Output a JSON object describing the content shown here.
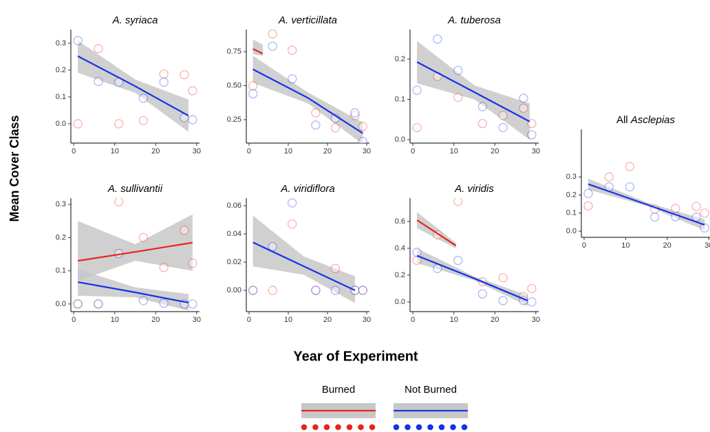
{
  "ylabel": "Mean Cover Class",
  "xlabel": "Year of Experiment",
  "legend": [
    {
      "name": "Burned",
      "color": "#e8231b"
    },
    {
      "name": "Not Burned",
      "color": "#1432e8"
    }
  ],
  "chart_data": [
    {
      "type": "scatter",
      "title": [
        {
          "text": "A. syriaca",
          "italic": true
        }
      ],
      "xlim": [
        -0.7,
        30.7
      ],
      "xticks": [
        0,
        10,
        20,
        30
      ],
      "ylim": [
        -0.072,
        0.351
      ],
      "yticks": [
        {
          "value": 0,
          "label": "0.0"
        },
        0.1,
        0.2,
        0.3
      ],
      "series": [
        {
          "group": 0,
          "x": [
            1,
            6,
            11,
            17,
            22,
            27,
            29
          ],
          "values": [
            0.0,
            0.28,
            0.0,
            0.012,
            0.185,
            0.183,
            0.123
          ]
        },
        {
          "group": 1,
          "x": [
            1,
            6,
            11,
            17,
            22,
            27,
            29
          ],
          "values": [
            0.31,
            0.158,
            0.155,
            0.095,
            0.155,
            0.023,
            0.015
          ],
          "fit": {
            "x": [
              1,
              15,
              28
            ],
            "values": [
              0.252,
              0.14,
              0.03
            ],
            "lower": [
              0.19,
              0.115,
              -0.03
            ],
            "upper": [
              0.31,
              0.165,
              0.09
            ]
          }
        }
      ]
    },
    {
      "type": "scatter",
      "title": [
        {
          "text": "A. verticillata",
          "italic": true
        }
      ],
      "xlim": [
        -0.7,
        30.7
      ],
      "xticks": [
        0,
        10,
        20,
        30
      ],
      "ylim": [
        0.078,
        0.912
      ],
      "yticks": [
        0.25,
        {
          "value": 0.5,
          "label": "0.50"
        },
        0.75
      ],
      "series": [
        {
          "group": 0,
          "x": [
            1,
            6,
            11,
            17,
            22,
            27,
            29
          ],
          "values": [
            0.5,
            0.88,
            0.76,
            0.3,
            0.19,
            0.28,
            0.2
          ],
          "fit": {
            "x": [
              1,
              3.5
            ],
            "values": [
              0.77,
              0.735
            ],
            "lower": [
              0.73,
              0.72
            ],
            "upper": [
              0.84,
              0.8
            ]
          }
        },
        {
          "group": 1,
          "x": [
            1,
            6,
            11,
            17,
            22,
            27,
            29
          ],
          "values": [
            0.44,
            0.79,
            0.55,
            0.21,
            0.26,
            0.3,
            0.09
          ],
          "fit": {
            "x": [
              1,
              15,
              29
            ],
            "values": [
              0.62,
              0.41,
              0.15
            ],
            "lower": [
              0.52,
              0.37,
              0.07
            ],
            "upper": [
              0.72,
              0.45,
              0.23
            ]
          }
        }
      ]
    },
    {
      "type": "scatter",
      "title": [
        {
          "text": "A. tuberosa",
          "italic": true
        }
      ],
      "xlim": [
        -0.7,
        30.7
      ],
      "xticks": [
        0,
        10,
        20,
        30
      ],
      "ylim": [
        -0.0085,
        0.2735
      ],
      "yticks": [
        {
          "value": 0,
          "label": "0.0"
        },
        0.1,
        0.2
      ],
      "series": [
        {
          "group": 0,
          "x": [
            1,
            6,
            11,
            17,
            22,
            27,
            29
          ],
          "values": [
            0.03,
            0.157,
            0.105,
            0.04,
            0.06,
            0.078,
            0.04
          ]
        },
        {
          "group": 1,
          "x": [
            1,
            6,
            11,
            17,
            22,
            27,
            29
          ],
          "values": [
            0.123,
            0.25,
            0.172,
            0.082,
            0.03,
            0.103,
            0.012
          ],
          "fit": {
            "x": [
              1,
              15,
              28.5
            ],
            "values": [
              0.193,
              0.118,
              0.045
            ],
            "lower": [
              0.14,
              0.1,
              0.0
            ],
            "upper": [
              0.245,
              0.135,
              0.09
            ]
          }
        }
      ]
    },
    {
      "type": "scatter",
      "title": [
        {
          "text": "A. sullivantii",
          "italic": true
        }
      ],
      "xlim": [
        -0.7,
        30.7
      ],
      "xticks": [
        0,
        10,
        20,
        30
      ],
      "ylim": [
        -0.023,
        0.319
      ],
      "yticks": [
        {
          "value": 0,
          "label": "0.0"
        },
        0.1,
        0.2,
        0.3
      ],
      "series": [
        {
          "group": 0,
          "x": [
            1,
            6,
            11,
            17,
            22,
            27,
            29
          ],
          "values": [
            0.0,
            0.0,
            0.308,
            0.2,
            0.11,
            0.222,
            0.123
          ],
          "fit": {
            "x": [
              1,
              15,
              29
            ],
            "values": [
              0.13,
              0.157,
              0.185
            ],
            "lower": [
              0.07,
              0.13,
              0.1
            ],
            "upper": [
              0.25,
              0.18,
              0.27
            ]
          }
        },
        {
          "group": 1,
          "x": [
            1,
            6,
            11,
            17,
            22,
            27,
            29
          ],
          "values": [
            0.0,
            0.0,
            0.152,
            0.01,
            0.002,
            0.0,
            0.0
          ],
          "fit": {
            "x": [
              1,
              15,
              28
            ],
            "values": [
              0.066,
              0.035,
              0.004
            ],
            "lower": [
              0.025,
              0.02,
              -0.02
            ],
            "upper": [
              0.105,
              0.05,
              0.03
            ]
          }
        }
      ]
    },
    {
      "type": "scatter",
      "title": [
        {
          "text": "A. viridiflora",
          "italic": true
        }
      ],
      "xlim": [
        -0.7,
        30.7
      ],
      "xticks": [
        0,
        10,
        20,
        30
      ],
      "ylim": [
        -0.0151,
        0.0654
      ],
      "yticks": [
        {
          "value": 0,
          "label": "0.00"
        },
        0.02,
        0.04,
        0.06
      ],
      "series": [
        {
          "group": 0,
          "x": [
            1,
            6,
            11,
            17,
            22,
            27,
            29
          ],
          "values": [
            0.0,
            0.0,
            0.047,
            0.0,
            0.0155,
            0.0,
            0.0
          ]
        },
        {
          "group": 1,
          "x": [
            1,
            6,
            11,
            17,
            22,
            27,
            29
          ],
          "values": [
            0.0,
            0.031,
            0.062,
            0.0,
            0.0,
            0.0,
            0.0
          ],
          "fit": {
            "x": [
              1,
              14,
              27
            ],
            "values": [
              0.034,
              0.017,
              0.0
            ],
            "lower": [
              0.017,
              0.011,
              -0.009
            ],
            "upper": [
              0.053,
              0.024,
              0.01
            ]
          }
        }
      ]
    },
    {
      "type": "scatter",
      "title": [
        {
          "text": "A. viridis",
          "italic": true
        }
      ],
      "xlim": [
        -0.7,
        30.7
      ],
      "xticks": [
        0,
        10,
        20,
        30
      ],
      "ylim": [
        -0.072,
        0.774
      ],
      "yticks": [
        {
          "value": 0,
          "label": "0.0"
        },
        0.2,
        0.4,
        0.6
      ],
      "series": [
        {
          "group": 0,
          "x": [
            1,
            6,
            11,
            17,
            22,
            27,
            29
          ],
          "values": [
            0.31,
            0.5,
            0.75,
            0.15,
            0.18,
            0.04,
            0.1
          ],
          "fit": {
            "x": [
              1,
              10.5
            ],
            "values": [
              0.61,
              0.42
            ],
            "lower": [
              0.55,
              0.4
            ],
            "upper": [
              0.67,
              0.44
            ]
          }
        },
        {
          "group": 1,
          "x": [
            1,
            6,
            11,
            17,
            22,
            27,
            29
          ],
          "values": [
            0.37,
            0.25,
            0.31,
            0.06,
            0.01,
            0.01,
            0.0
          ],
          "fit": {
            "x": [
              1,
              15,
              28
            ],
            "values": [
              0.345,
              0.175,
              0.01
            ],
            "lower": [
              0.29,
              0.16,
              -0.03
            ],
            "upper": [
              0.4,
              0.19,
              0.05
            ]
          }
        }
      ]
    },
    {
      "type": "scatter",
      "title": [
        {
          "text": "All ",
          "italic": false
        },
        {
          "text": "Asclepias",
          "italic": true
        }
      ],
      "xlim": [
        -0.66,
        30.3
      ],
      "xticks": [
        0,
        10,
        20,
        30
      ],
      "ylim": [
        -0.034,
        0.563
      ],
      "yticks": [
        {
          "value": 0,
          "label": "0.0"
        },
        0.1,
        0.2,
        0.3
      ],
      "series": [
        {
          "group": 0,
          "x": [
            1,
            6,
            11,
            17,
            22,
            27,
            29
          ],
          "values": [
            0.14,
            0.3,
            0.357,
            0.122,
            0.125,
            0.137,
            0.1
          ]
        },
        {
          "group": 1,
          "x": [
            1,
            6,
            11,
            17,
            22,
            27,
            29
          ],
          "values": [
            0.208,
            0.245,
            0.245,
            0.078,
            0.08,
            0.078,
            0.018
          ],
          "fit": {
            "x": [
              1,
              15,
              29
            ],
            "values": [
              0.26,
              0.148,
              0.035
            ],
            "lower": [
              0.23,
              0.14,
              0.005
            ],
            "upper": [
              0.29,
              0.16,
              0.065
            ]
          }
        }
      ]
    }
  ]
}
